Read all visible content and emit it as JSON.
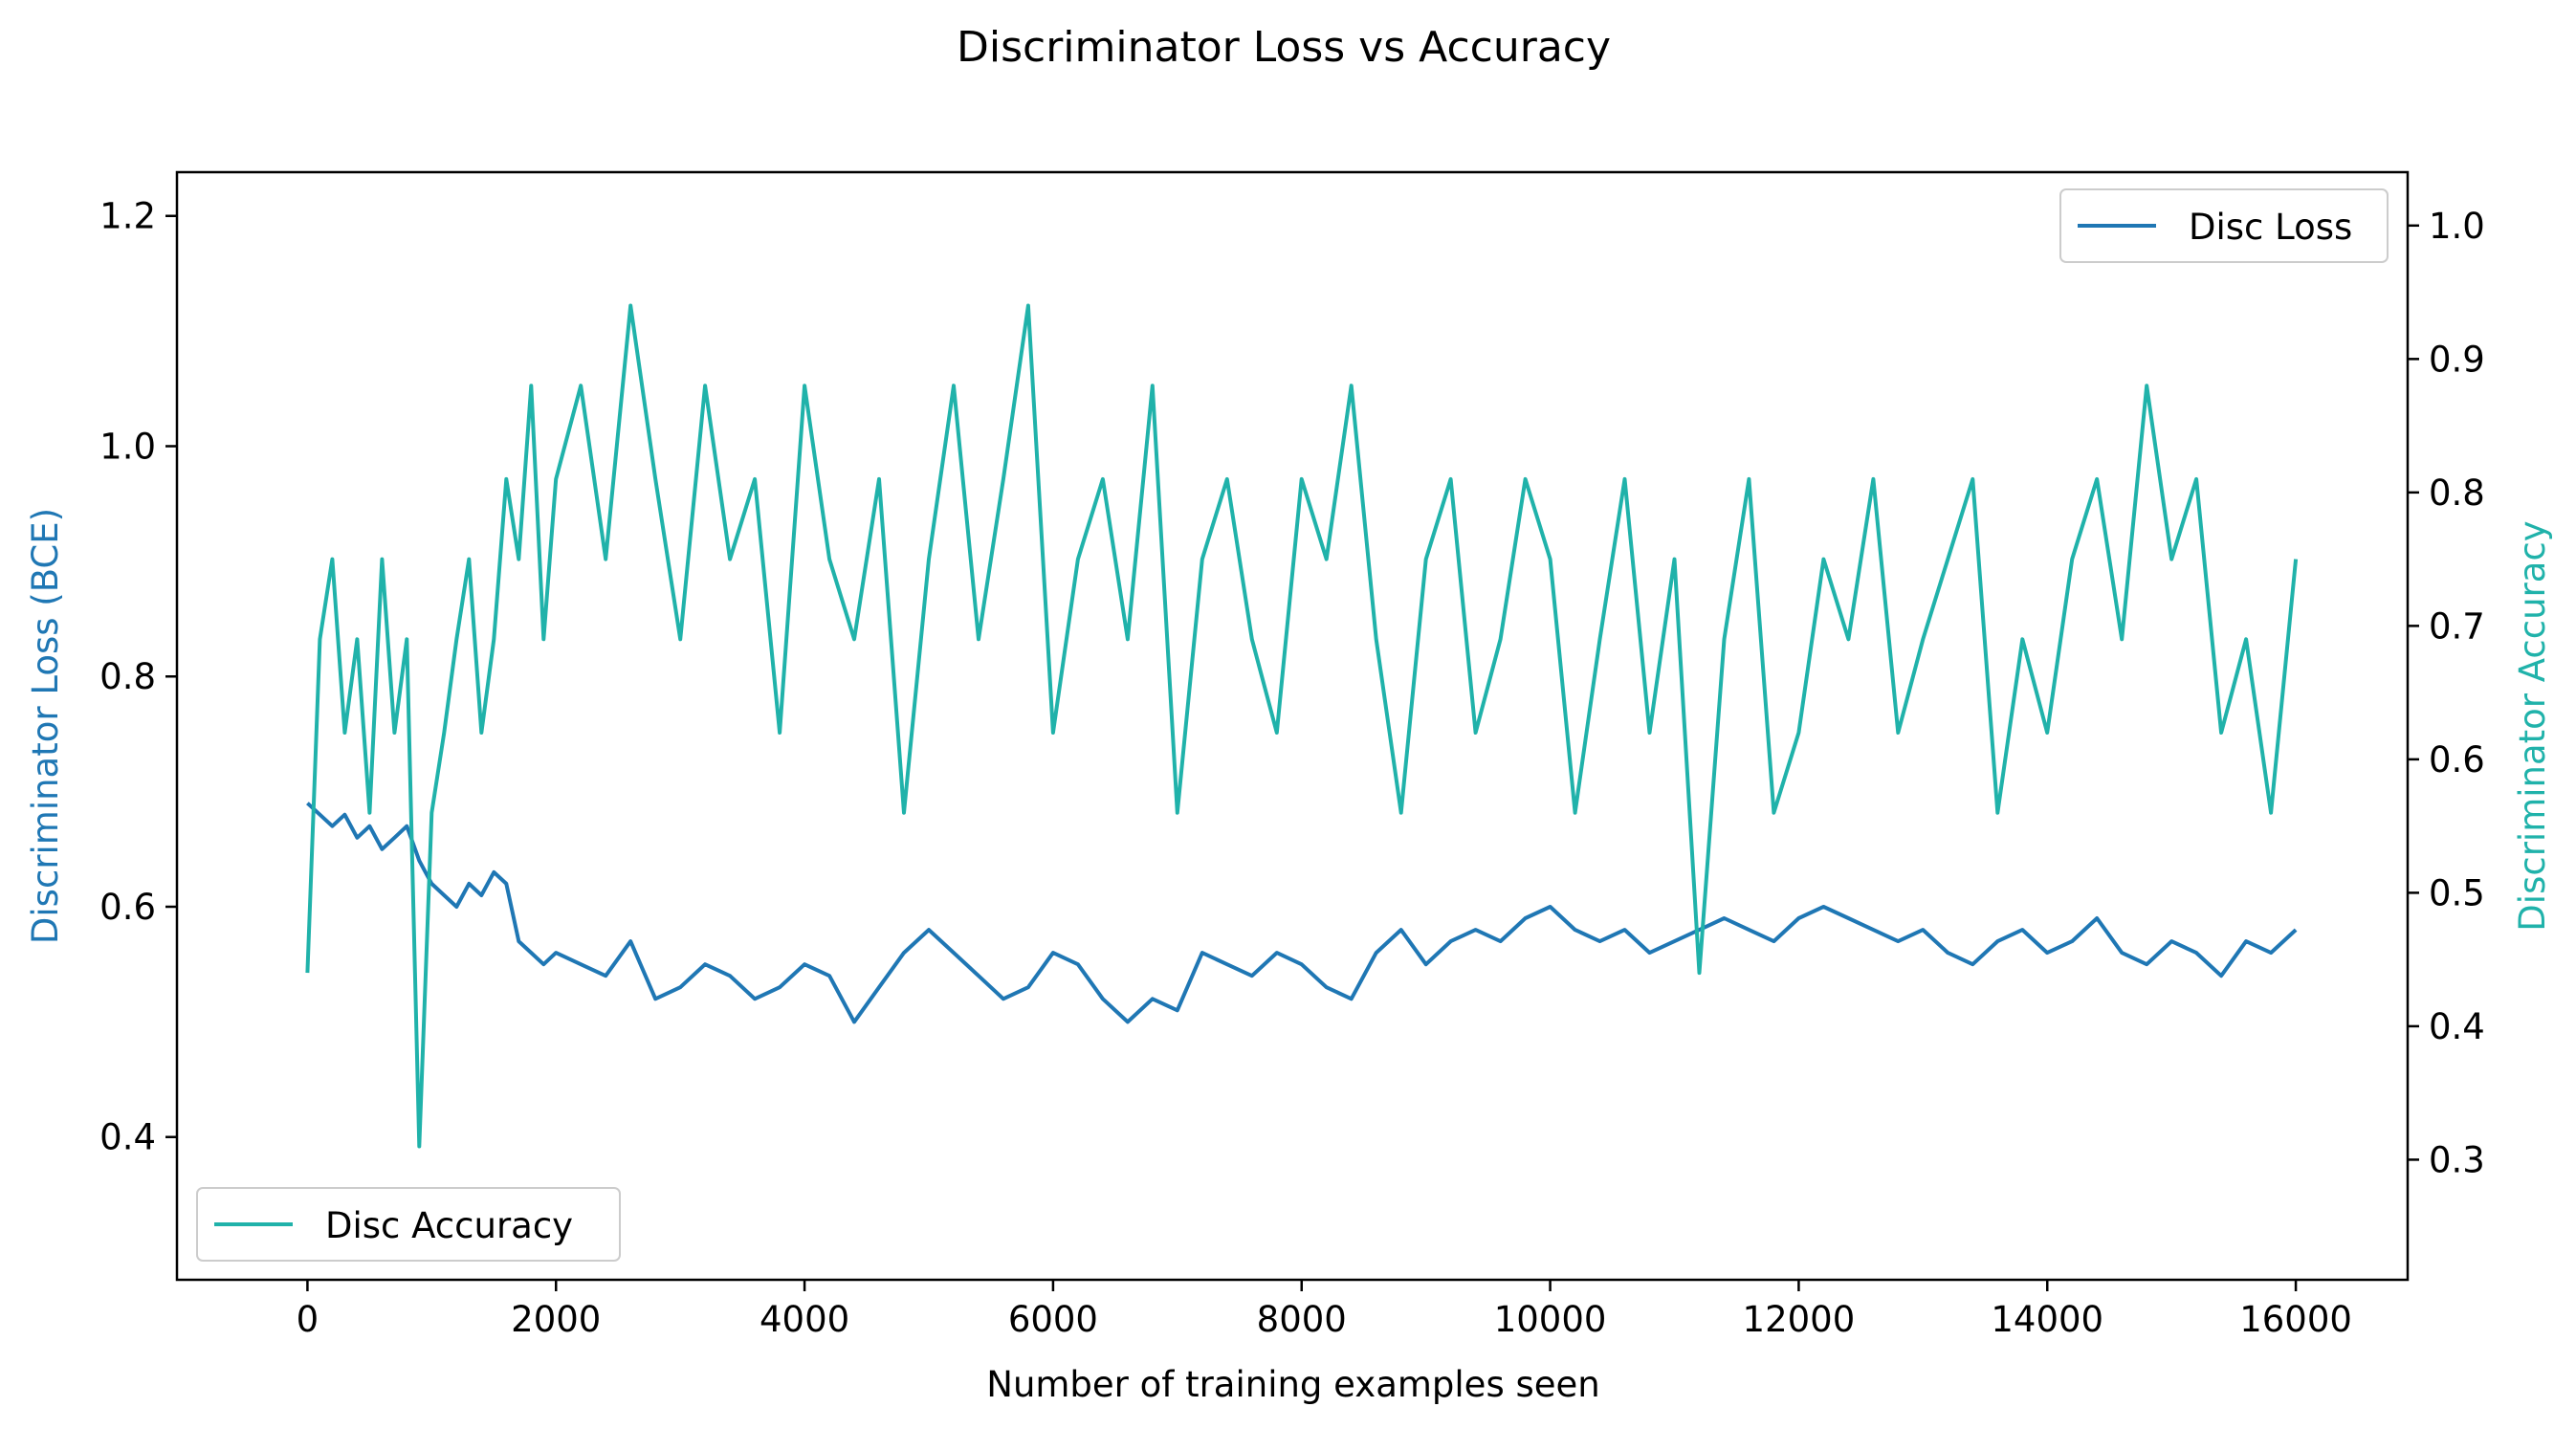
{
  "chart_data": {
    "type": "line",
    "title": "Discriminator Loss vs Accuracy",
    "xlabel": "Number of training examples seen",
    "ylabel_left": "Discriminator Loss (BCE)",
    "ylabel_right": "Discriminator Accuracy",
    "xlim": [
      -1050,
      16900
    ],
    "ylim_left": [
      0.276,
      1.238
    ],
    "ylim_right": [
      0.21,
      1.04
    ],
    "x_ticks": [
      0,
      2000,
      4000,
      6000,
      8000,
      10000,
      12000,
      14000,
      16000
    ],
    "x_tick_labels": [
      "0",
      "2000",
      "4000",
      "6000",
      "8000",
      "10000",
      "12000",
      "14000",
      "16000"
    ],
    "y_left_ticks": [
      0.4,
      0.6,
      0.8,
      1.0,
      1.2
    ],
    "y_left_tick_labels": [
      "0.4",
      "0.6",
      "0.8",
      "1.0",
      "1.2"
    ],
    "y_right_ticks": [
      0.3,
      0.4,
      0.5,
      0.6,
      0.7,
      0.8,
      0.9,
      1.0
    ],
    "y_right_tick_labels": [
      "0.3",
      "0.4",
      "0.5",
      "0.6",
      "0.7",
      "0.8",
      "0.9",
      "1.0"
    ],
    "grid": false,
    "legend_left_placement": "upper right",
    "legend_right_placement": "lower left",
    "series": [
      {
        "name": "Disc Loss",
        "axis": "left",
        "color": "#1f77b4",
        "x": [
          0,
          100,
          200,
          300,
          400,
          500,
          600,
          700,
          800,
          900,
          1000,
          1100,
          1200,
          1300,
          1400,
          1500,
          1600,
          1700,
          1800,
          1900,
          2000,
          2200,
          2400,
          2600,
          2800,
          3000,
          3200,
          3400,
          3600,
          3800,
          4000,
          4200,
          4400,
          4600,
          4800,
          5000,
          5200,
          5400,
          5600,
          5800,
          6000,
          6200,
          6400,
          6600,
          6800,
          7000,
          7200,
          7400,
          7600,
          7800,
          8000,
          8200,
          8400,
          8600,
          8800,
          9000,
          9200,
          9400,
          9600,
          9800,
          10000,
          10200,
          10400,
          10600,
          10800,
          11000,
          11200,
          11400,
          11600,
          11800,
          12000,
          12200,
          12400,
          12600,
          12800,
          13000,
          13200,
          13400,
          13600,
          13800,
          14000,
          14200,
          14400,
          14600,
          14800,
          15000,
          15200,
          15400,
          15600,
          15800,
          16000
        ],
        "y": [
          0.69,
          0.68,
          0.67,
          0.68,
          0.66,
          0.67,
          0.65,
          0.66,
          0.67,
          0.64,
          0.62,
          0.61,
          0.6,
          0.62,
          0.61,
          0.63,
          0.62,
          0.57,
          0.56,
          0.55,
          0.56,
          0.55,
          0.54,
          0.57,
          0.52,
          0.53,
          0.55,
          0.54,
          0.52,
          0.53,
          0.55,
          0.54,
          0.5,
          0.53,
          0.56,
          0.58,
          0.56,
          0.54,
          0.52,
          0.53,
          0.56,
          0.55,
          0.52,
          0.5,
          0.52,
          0.51,
          0.56,
          0.55,
          0.54,
          0.56,
          0.55,
          0.53,
          0.52,
          0.56,
          0.58,
          0.55,
          0.57,
          0.58,
          0.57,
          0.59,
          0.6,
          0.58,
          0.57,
          0.58,
          0.56,
          0.57,
          0.58,
          0.59,
          0.58,
          0.57,
          0.59,
          0.6,
          0.59,
          0.58,
          0.57,
          0.58,
          0.56,
          0.55,
          0.57,
          0.58,
          0.56,
          0.57,
          0.59,
          0.56,
          0.55,
          0.57,
          0.56,
          0.54,
          0.57,
          0.56,
          0.58
        ]
      },
      {
        "name": "Disc Accuracy",
        "axis": "right",
        "color": "#20b2aa",
        "x": [
          0,
          100,
          200,
          300,
          400,
          500,
          600,
          700,
          800,
          900,
          1000,
          1100,
          1200,
          1300,
          1400,
          1500,
          1600,
          1700,
          1800,
          1900,
          2000,
          2200,
          2400,
          2600,
          2800,
          3000,
          3200,
          3400,
          3600,
          3800,
          4000,
          4200,
          4400,
          4600,
          4800,
          5000,
          5200,
          5400,
          5600,
          5800,
          6000,
          6200,
          6400,
          6600,
          6800,
          7000,
          7200,
          7400,
          7600,
          7800,
          8000,
          8200,
          8400,
          8600,
          8800,
          9000,
          9200,
          9400,
          9600,
          9800,
          10000,
          10200,
          10400,
          10600,
          10800,
          11000,
          11200,
          11400,
          11600,
          11800,
          12000,
          12200,
          12400,
          12600,
          12800,
          13000,
          13200,
          13400,
          13600,
          13800,
          14000,
          14200,
          14400,
          14600,
          14800,
          15000,
          15200,
          15400,
          15600,
          15800,
          16000
        ],
        "y": [
          0.44,
          0.69,
          0.75,
          0.62,
          0.69,
          0.56,
          0.75,
          0.62,
          0.69,
          0.31,
          0.56,
          0.62,
          0.69,
          0.75,
          0.62,
          0.69,
          0.81,
          0.75,
          0.88,
          0.69,
          0.81,
          0.88,
          0.75,
          0.94,
          0.81,
          0.69,
          0.88,
          0.75,
          0.81,
          0.62,
          0.88,
          0.75,
          0.69,
          0.81,
          0.56,
          0.75,
          0.88,
          0.69,
          0.81,
          0.94,
          0.62,
          0.75,
          0.81,
          0.69,
          0.88,
          0.56,
          0.75,
          0.81,
          0.69,
          0.62,
          0.81,
          0.75,
          0.88,
          0.69,
          0.56,
          0.75,
          0.81,
          0.62,
          0.69,
          0.81,
          0.75,
          0.56,
          0.69,
          0.81,
          0.62,
          0.75,
          0.44,
          0.69,
          0.81,
          0.56,
          0.62,
          0.75,
          0.69,
          0.81,
          0.62,
          0.69,
          0.75,
          0.81,
          0.56,
          0.69,
          0.62,
          0.75,
          0.81,
          0.69,
          0.88,
          0.75,
          0.81,
          0.62,
          0.69,
          0.56,
          0.75
        ]
      }
    ]
  }
}
